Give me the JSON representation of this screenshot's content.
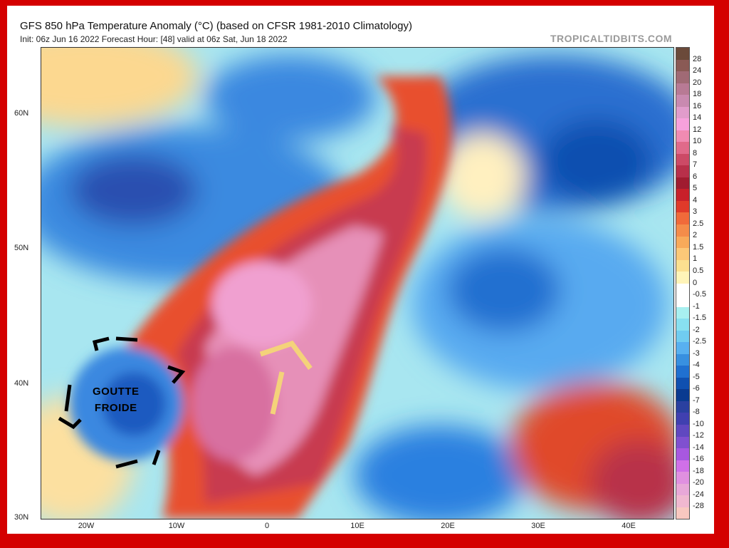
{
  "header": {
    "title": "GFS 850 hPa Temperature Anomaly (°C) (based on CFSR 1981-2010 Climatology)",
    "subtitle": "Init: 06z Jun 16 2022   Forecast Hour: [48]   valid at 06z Sat, Jun 18 2022",
    "brand": "TROPICALTIDBITS.COM"
  },
  "axes": {
    "lat_labels": [
      "60N",
      "50N",
      "40N",
      "30N"
    ],
    "lon_labels": [
      "20W",
      "10W",
      "0",
      "10E",
      "20E",
      "30E",
      "40E"
    ]
  },
  "colorbar": {
    "labels": [
      "28",
      "24",
      "20",
      "18",
      "16",
      "14",
      "12",
      "10",
      "8",
      "7",
      "6",
      "5",
      "4",
      "3",
      "2.5",
      "2",
      "1.5",
      "1",
      "0.5",
      "0",
      "-0.5",
      "-1",
      "-1.5",
      "-2",
      "-2.5",
      "-3",
      "-4",
      "-5",
      "-6",
      "-7",
      "-8",
      "-10",
      "-12",
      "-14",
      "-16",
      "-18",
      "-20",
      "-24",
      "-28"
    ],
    "colors": [
      "#6b4a3a",
      "#8a5a55",
      "#a06a75",
      "#b87a95",
      "#c98ab0",
      "#e19ccb",
      "#f7a1dc",
      "#f08bb2",
      "#e06a8a",
      "#cc4a66",
      "#b8304a",
      "#a01c30",
      "#c8202a",
      "#e03a2a",
      "#f06a3a",
      "#f48c4a",
      "#f8aa5a",
      "#fcc878",
      "#fce090",
      "#fff4b8",
      "#ffffff",
      "#ffffff",
      "#a8f0f0",
      "#88e0f0",
      "#70ccf0",
      "#58b0f0",
      "#3890e0",
      "#2070d0",
      "#1050b0",
      "#0a3a90",
      "#2a40a0",
      "#4040b0",
      "#6048c0",
      "#8050d0",
      "#a858e0",
      "#d070e8",
      "#e090e0",
      "#e8a8d8",
      "#f0b8d0",
      "#f8c8c0"
    ]
  },
  "annotation": {
    "line1": "GOUTTE",
    "line2": "FROIDE",
    "accent": "#f4d27a"
  }
}
